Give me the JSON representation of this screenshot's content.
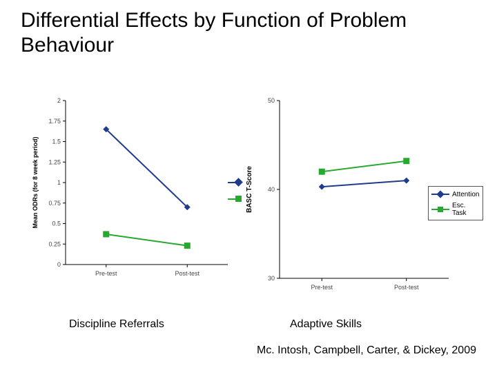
{
  "title": "Differential Effects by Function of Problem Behaviour",
  "citation": "Mc. Intosh, Campbell, Carter, & Dickey, 2009",
  "labels": {
    "left_sub": "Discipline Referrals",
    "right_sub": "Adaptive Skills"
  },
  "colors": {
    "attention": "#1f3b8c",
    "esc_task": "#27a82f",
    "background": "#ffffff",
    "axis": "#000000",
    "tick_text": "#444444",
    "grid": "#e0e0e0"
  },
  "legend": {
    "items": [
      {
        "key": "attention",
        "label": "Attention",
        "marker": "diamond"
      },
      {
        "key": "esc_task",
        "label": "Esc. Task",
        "marker": "square"
      }
    ],
    "fontsize": 10
  },
  "left_chart": {
    "type": "line",
    "ylabel": "Mean ODRs (for 8 week period)",
    "ylabel_fontsize": 9,
    "ylim": [
      0,
      2
    ],
    "ytick_step": 0.25,
    "yticks": [
      "0",
      "0.25",
      "0.5",
      "0.75",
      "1",
      "1.25",
      "1.5",
      "1.75",
      "2"
    ],
    "categories": [
      "Pre-test",
      "Post-test"
    ],
    "tick_fontsize": 9,
    "series": [
      {
        "name": "Attention",
        "color": "#1f3b8c",
        "marker": "diamond",
        "line_width": 2,
        "marker_size": 9,
        "values": [
          1.65,
          0.7
        ]
      },
      {
        "name": "Esc. Task",
        "color": "#27a82f",
        "marker": "square",
        "line_width": 2,
        "marker_size": 9,
        "values": [
          0.37,
          0.23
        ]
      }
    ],
    "background_color": "#ffffff"
  },
  "right_chart": {
    "type": "line",
    "ylabel": "BASC T-Score",
    "ylabel_fontsize": 10,
    "ylim": [
      30,
      50
    ],
    "ytick_step": 10,
    "yticks": [
      "30",
      "40",
      "50"
    ],
    "categories": [
      "Pre-test",
      "Post-test"
    ],
    "tick_fontsize": 9,
    "series": [
      {
        "name": "Attention",
        "color": "#1f3b8c",
        "marker": "diamond",
        "line_width": 2,
        "marker_size": 9,
        "values": [
          40.3,
          41.0
        ]
      },
      {
        "name": "Esc. Task",
        "color": "#27a82f",
        "marker": "square",
        "line_width": 2,
        "marker_size": 9,
        "values": [
          42.0,
          43.2
        ]
      }
    ],
    "background_color": "#ffffff"
  }
}
